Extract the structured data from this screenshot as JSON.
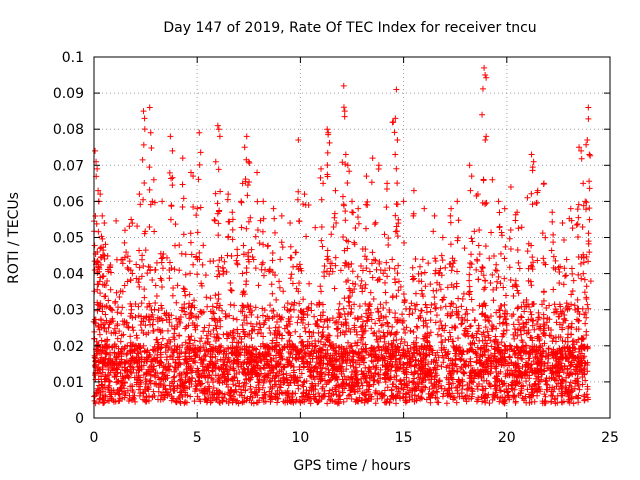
{
  "chart_data": {
    "type": "scatter",
    "title": "Day 147 of 2019, Rate Of TEC Index for receiver tncu",
    "xlabel": "GPS time / hours",
    "ylabel": "ROTI / TECUs",
    "xlim": [
      0,
      25
    ],
    "ylim": [
      0,
      0.1
    ],
    "grid": true,
    "marker": "+",
    "marker_color": "#ff0000",
    "x_ticks": [
      0,
      5,
      10,
      15,
      20,
      25
    ],
    "x_tick_labels": [
      "0",
      "5",
      "10",
      "15",
      "20",
      "25"
    ],
    "y_ticks": [
      0,
      0.01,
      0.02,
      0.03,
      0.04,
      0.05,
      0.06,
      0.07,
      0.08,
      0.09,
      0.1
    ],
    "y_tick_labels": [
      "0",
      "0.01",
      "0.02",
      "0.03",
      "0.04",
      "0.05",
      "0.06",
      "0.07",
      "0.08",
      "0.09",
      "0.1"
    ],
    "series": [
      {
        "name": "ROTI",
        "note": "dense point cloud from 0 to 24 h; baseline ~0.005-0.02 TECU/s with frequent spikes",
        "points": [
          [
            0.05,
            0.074
          ],
          [
            0.1,
            0.071
          ],
          [
            0.15,
            0.069
          ],
          [
            0.2,
            0.063
          ],
          [
            0.3,
            0.062
          ],
          [
            0.4,
            0.056
          ],
          [
            0.5,
            0.054
          ],
          [
            0.3,
            0.047
          ],
          [
            0.5,
            0.045
          ],
          [
            0.2,
            0.043
          ],
          [
            1.5,
            0.052
          ],
          [
            1.8,
            0.055
          ],
          [
            2.4,
            0.085
          ],
          [
            2.45,
            0.083
          ],
          [
            2.7,
            0.086
          ],
          [
            2.75,
            0.079
          ],
          [
            2.2,
            0.062
          ],
          [
            2.9,
            0.066
          ],
          [
            3.3,
            0.06
          ],
          [
            3.7,
            0.078
          ],
          [
            3.8,
            0.074
          ],
          [
            4.3,
            0.072
          ],
          [
            4.7,
            0.068
          ],
          [
            4.8,
            0.067
          ],
          [
            5.1,
            0.079
          ],
          [
            5.0,
            0.058
          ],
          [
            6.0,
            0.081
          ],
          [
            6.05,
            0.08
          ],
          [
            6.1,
            0.078
          ],
          [
            5.9,
            0.071
          ],
          [
            6.5,
            0.062
          ],
          [
            6.7,
            0.057
          ],
          [
            7.3,
            0.075
          ],
          [
            7.4,
            0.078
          ],
          [
            7.5,
            0.071
          ],
          [
            7.2,
            0.065
          ],
          [
            7.9,
            0.068
          ],
          [
            8.2,
            0.06
          ],
          [
            8.7,
            0.058
          ],
          [
            9.1,
            0.056
          ],
          [
            9.5,
            0.054
          ],
          [
            9.9,
            0.077
          ],
          [
            10.2,
            0.062
          ],
          [
            10.4,
            0.059
          ],
          [
            11.0,
            0.069
          ],
          [
            11.1,
            0.065
          ],
          [
            11.3,
            0.08
          ],
          [
            11.35,
            0.079
          ],
          [
            11.7,
            0.063
          ],
          [
            12.1,
            0.092
          ],
          [
            12.15,
            0.085
          ],
          [
            12.2,
            0.073
          ],
          [
            12.3,
            0.07
          ],
          [
            12.5,
            0.06
          ],
          [
            12.8,
            0.058
          ],
          [
            13.2,
            0.067
          ],
          [
            13.5,
            0.072
          ],
          [
            13.8,
            0.07
          ],
          [
            14.2,
            0.065
          ],
          [
            14.5,
            0.082
          ],
          [
            14.6,
            0.083
          ],
          [
            14.65,
            0.091
          ],
          [
            14.7,
            0.077
          ],
          [
            15.0,
            0.06
          ],
          [
            15.5,
            0.063
          ],
          [
            16.0,
            0.058
          ],
          [
            16.5,
            0.056
          ],
          [
            16.9,
            0.05
          ],
          [
            17.3,
            0.058
          ],
          [
            17.6,
            0.06
          ],
          [
            18.2,
            0.07
          ],
          [
            18.3,
            0.067
          ],
          [
            18.6,
            0.062
          ],
          [
            18.8,
            0.084
          ],
          [
            18.9,
            0.097
          ],
          [
            18.95,
            0.095
          ],
          [
            19.0,
            0.078
          ],
          [
            19.3,
            0.066
          ],
          [
            19.6,
            0.06
          ],
          [
            19.9,
            0.058
          ],
          [
            20.2,
            0.064
          ],
          [
            20.5,
            0.057
          ],
          [
            21.0,
            0.061
          ],
          [
            21.2,
            0.073
          ],
          [
            21.3,
            0.071
          ],
          [
            21.5,
            0.063
          ],
          [
            21.8,
            0.065
          ],
          [
            22.2,
            0.057
          ],
          [
            22.7,
            0.054
          ],
          [
            23.1,
            0.058
          ],
          [
            23.5,
            0.075
          ],
          [
            23.6,
            0.074
          ],
          [
            23.7,
            0.065
          ],
          [
            23.8,
            0.06
          ],
          [
            23.9,
            0.077
          ],
          [
            23.95,
            0.086
          ],
          [
            24.0,
            0.073
          ]
        ]
      }
    ]
  }
}
